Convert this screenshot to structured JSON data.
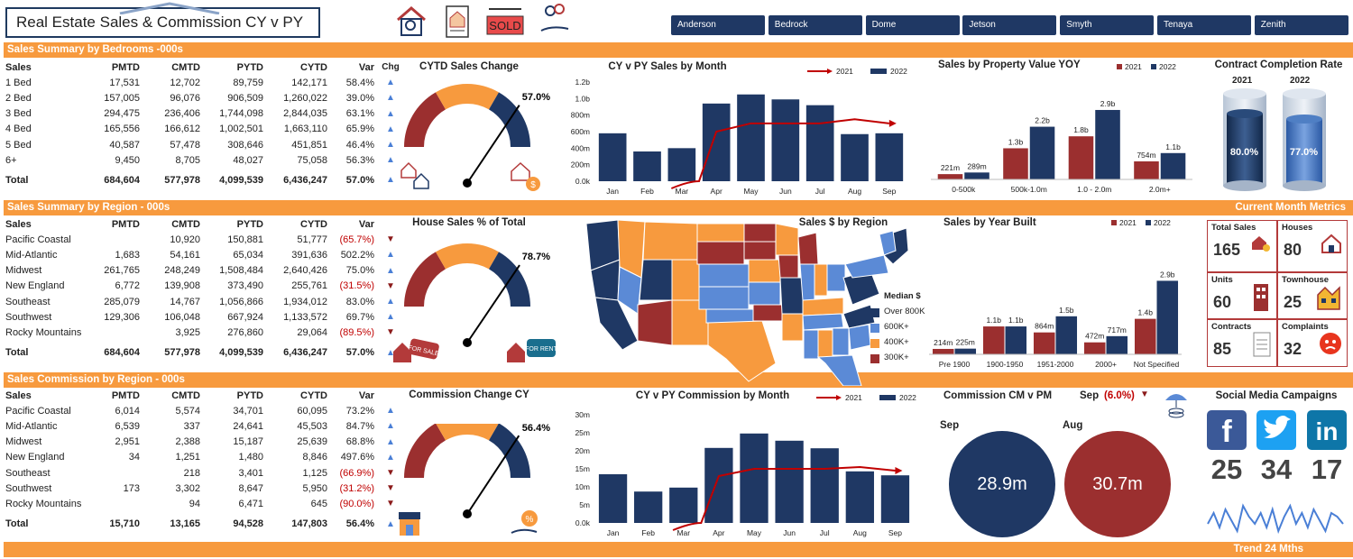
{
  "title": "Real Estate Sales & Commission  CY v PY",
  "filters": [
    "Anderson",
    "Bedrock",
    "Dome",
    "Jetson",
    "Smyth",
    "Tenaya",
    "Zenith"
  ],
  "bands": {
    "bedrooms": "Sales Summary by Bedrooms -000s",
    "region": "Sales Summary by Region - 000s",
    "commission": "Sales Commission by Region - 000s",
    "current_metrics": "Current Month Metrics",
    "trend": "Trend 24 Mths"
  },
  "headers": {
    "label": "Sales",
    "pmtd": "PMTD",
    "cmtd": "CMTD",
    "pytd": "PYTD",
    "cytd": "CYTD",
    "var": "Var",
    "chg": "Chg"
  },
  "bedrooms_table": {
    "rows": [
      {
        "label": "1 Bed",
        "pmtd": "17,531",
        "cmtd": "12,702",
        "pytd": "89,759",
        "cytd": "142,171",
        "var": "58.4%",
        "dir": "up"
      },
      {
        "label": "2 Bed",
        "pmtd": "157,005",
        "cmtd": "96,076",
        "pytd": "906,509",
        "cytd": "1,260,022",
        "var": "39.0%",
        "dir": "up"
      },
      {
        "label": "3 Bed",
        "pmtd": "294,475",
        "cmtd": "236,406",
        "pytd": "1,744,098",
        "cytd": "2,844,035",
        "var": "63.1%",
        "dir": "up"
      },
      {
        "label": "4 Bed",
        "pmtd": "165,556",
        "cmtd": "166,612",
        "pytd": "1,002,501",
        "cytd": "1,663,110",
        "var": "65.9%",
        "dir": "up"
      },
      {
        "label": "5 Bed",
        "pmtd": "40,587",
        "cmtd": "57,478",
        "pytd": "308,646",
        "cytd": "451,851",
        "var": "46.4%",
        "dir": "up"
      },
      {
        "label": "6+",
        "pmtd": "9,450",
        "cmtd": "8,705",
        "pytd": "48,027",
        "cytd": "75,058",
        "var": "56.3%",
        "dir": "up"
      }
    ],
    "total": {
      "label": "Total",
      "pmtd": "684,604",
      "cmtd": "577,978",
      "pytd": "4,099,539",
      "cytd": "6,436,247",
      "var": "57.0%",
      "dir": "up"
    }
  },
  "region_table": {
    "rows": [
      {
        "label": "Pacific Coastal",
        "pmtd": "",
        "cmtd": "10,920",
        "pytd": "150,881",
        "cytd": "51,777",
        "var": "(65.7%)",
        "dir": "down"
      },
      {
        "label": "Mid-Atlantic",
        "pmtd": "1,683",
        "cmtd": "54,161",
        "pytd": "65,034",
        "cytd": "391,636",
        "var": "502.2%",
        "dir": "up"
      },
      {
        "label": "Midwest",
        "pmtd": "261,765",
        "cmtd": "248,249",
        "pytd": "1,508,484",
        "cytd": "2,640,426",
        "var": "75.0%",
        "dir": "up"
      },
      {
        "label": "New England",
        "pmtd": "6,772",
        "cmtd": "139,908",
        "pytd": "373,490",
        "cytd": "255,761",
        "var": "(31.5%)",
        "dir": "down"
      },
      {
        "label": "Southeast",
        "pmtd": "285,079",
        "cmtd": "14,767",
        "pytd": "1,056,866",
        "cytd": "1,934,012",
        "var": "83.0%",
        "dir": "up"
      },
      {
        "label": "Southwest",
        "pmtd": "129,306",
        "cmtd": "106,048",
        "pytd": "667,924",
        "cytd": "1,133,572",
        "var": "69.7%",
        "dir": "up"
      },
      {
        "label": "Rocky Mountains",
        "pmtd": "",
        "cmtd": "3,925",
        "pytd": "276,860",
        "cytd": "29,064",
        "var": "(89.5%)",
        "dir": "down"
      }
    ],
    "total": {
      "label": "Total",
      "pmtd": "684,604",
      "cmtd": "577,978",
      "pytd": "4,099,539",
      "cytd": "6,436,247",
      "var": "57.0%",
      "dir": "up"
    }
  },
  "commission_table": {
    "rows": [
      {
        "label": "Pacific Coastal",
        "pmtd": "6,014",
        "cmtd": "5,574",
        "pytd": "34,701",
        "cytd": "60,095",
        "var": "73.2%",
        "dir": "up"
      },
      {
        "label": "Mid-Atlantic",
        "pmtd": "6,539",
        "cmtd": "337",
        "pytd": "24,641",
        "cytd": "45,503",
        "var": "84.7%",
        "dir": "up"
      },
      {
        "label": "Midwest",
        "pmtd": "2,951",
        "cmtd": "2,388",
        "pytd": "15,187",
        "cytd": "25,639",
        "var": "68.8%",
        "dir": "up"
      },
      {
        "label": "New England",
        "pmtd": "34",
        "cmtd": "1,251",
        "pytd": "1,480",
        "cytd": "8,846",
        "var": "497.6%",
        "dir": "up"
      },
      {
        "label": "Southeast",
        "pmtd": "",
        "cmtd": "218",
        "pytd": "3,401",
        "cytd": "1,125",
        "var": "(66.9%)",
        "dir": "down"
      },
      {
        "label": "Southwest",
        "pmtd": "173",
        "cmtd": "3,302",
        "pytd": "8,647",
        "cytd": "5,950",
        "var": "(31.2%)",
        "dir": "down"
      },
      {
        "label": "Rocky Mountains",
        "pmtd": "",
        "cmtd": "94",
        "pytd": "6,471",
        "cytd": "645",
        "var": "(90.0%)",
        "dir": "down"
      }
    ],
    "total": {
      "label": "Total",
      "pmtd": "15,710",
      "cmtd": "13,165",
      "pytd": "94,528",
      "cytd": "147,803",
      "var": "56.4%",
      "dir": "up"
    }
  },
  "gauges": [
    {
      "title": "CYTD Sales Change",
      "value_label": "57.0%",
      "fraction": 0.785
    },
    {
      "title": "House Sales % of Total",
      "value_label": "78.7%",
      "fraction": 0.787
    },
    {
      "title": "Commission Change CY",
      "value_label": "56.4%",
      "fraction": 0.782
    }
  ],
  "colors": {
    "orange": "#f79a3e",
    "navy": "#1f3864",
    "red": "#9b2f2f",
    "lightblue": "#5b8ad6",
    "blue_bar": "#1f3864"
  },
  "completion": {
    "title": "Contract Completion Rate",
    "years": [
      "2021",
      "2022"
    ],
    "values": [
      "80.0%",
      "77.0%"
    ]
  },
  "metrics": [
    {
      "label": "Total Sales",
      "value": "165",
      "icon": "house-key-icon"
    },
    {
      "label": "Houses",
      "value": "80",
      "icon": "house-icon"
    },
    {
      "label": "Units",
      "value": "60",
      "icon": "apartment-icon"
    },
    {
      "label": "Townhouse",
      "value": "25",
      "icon": "townhouse-icon"
    },
    {
      "label": "Contracts",
      "value": "85",
      "icon": "document-icon"
    },
    {
      "label": "Complaints",
      "value": "32",
      "icon": "angry-face-icon"
    }
  ],
  "commission_cm_pm": {
    "title": "Commission CM v PM",
    "month": "Sep",
    "change": "(6.0%)",
    "cm_label": "Sep",
    "pm_label": "Aug",
    "cm_value": "28.9m",
    "pm_value": "30.7m"
  },
  "social": {
    "title": "Social Media Campaigns",
    "counts": [
      "25",
      "34",
      "17"
    ],
    "trend": [
      6,
      9,
      5,
      10,
      7,
      4,
      11,
      8,
      6,
      9,
      5,
      10,
      4,
      8,
      11,
      6,
      9,
      5,
      10,
      7,
      4,
      9,
      8,
      6
    ]
  },
  "map": {
    "title": "Sales $ by Region",
    "legend_title": "Median $",
    "legend": [
      {
        "label": "Over 800K",
        "color": "#1f3864"
      },
      {
        "label": "600K+",
        "color": "#5b8ad6"
      },
      {
        "label": "400K+",
        "color": "#f79a3e"
      },
      {
        "label": "300K+",
        "color": "#9b2f2f"
      }
    ]
  },
  "chart_data": [
    {
      "type": "bar",
      "title": "CY v PY Sales by Month",
      "categories": [
        "Jan",
        "Feb",
        "Mar",
        "Apr",
        "May",
        "Jun",
        "Jul",
        "Aug",
        "Sep"
      ],
      "series": [
        {
          "name": "2022",
          "values": [
            580,
            360,
            400,
            940,
            1050,
            990,
            920,
            570,
            580
          ]
        },
        {
          "name": "2021",
          "values": [
            null,
            null,
            0,
            600,
            700,
            700,
            700,
            750,
            700
          ]
        }
      ],
      "yticks": [
        "0.0k",
        "200m",
        "400m",
        "600m",
        "800m",
        "1.0b",
        "1.2b"
      ],
      "ylim": [
        0,
        1200
      ],
      "legend": "top-right"
    },
    {
      "type": "bar",
      "title": "Sales by Property Value YOY",
      "categories": [
        "0-500k",
        "500k-1.0m",
        "1.0 - 2.0m",
        "2.0m+"
      ],
      "series": [
        {
          "name": "2021",
          "values": [
            221,
            1300,
            1800,
            754
          ]
        },
        {
          "name": "2022",
          "values": [
            289,
            2200,
            2900,
            1100
          ]
        }
      ],
      "labels": {
        "2021": [
          "221m",
          "1.3b",
          "1.8b",
          "754m"
        ],
        "2022": [
          "289m",
          "2.2b",
          "2.9b",
          "1.1b"
        ]
      },
      "ylim": [
        0,
        3200
      ],
      "legend": "top-right"
    },
    {
      "type": "bar",
      "title": "Sales by Year Built",
      "categories": [
        "Pre 1900",
        "1900-1950",
        "1951-2000",
        "2000+",
        "Not Specified"
      ],
      "series": [
        {
          "name": "2021",
          "values": [
            214,
            1100,
            864,
            472,
            1400
          ]
        },
        {
          "name": "2022",
          "values": [
            225,
            1100,
            1500,
            717,
            2900
          ]
        }
      ],
      "labels": {
        "2021": [
          "214m",
          "1.1b",
          "864m",
          "472m",
          "1.4b"
        ],
        "2022": [
          "225m",
          "1.1b",
          "1.5b",
          "717m",
          "2.9b"
        ]
      },
      "ylim": [
        0,
        3200
      ],
      "legend": "top-right"
    },
    {
      "type": "bar",
      "title": "CY v PY Commission by Month",
      "categories": [
        "Jan",
        "Feb",
        "Mar",
        "Apr",
        "May",
        "Jun",
        "Jul",
        "Aug",
        "Sep"
      ],
      "series": [
        {
          "name": "2022",
          "values": [
            13.5,
            8.7,
            9.8,
            20.8,
            24.8,
            22.8,
            20.7,
            14.3,
            13.2
          ]
        },
        {
          "name": "2021",
          "values": [
            null,
            null,
            0,
            13,
            15,
            15,
            15,
            15.5,
            14.5
          ]
        }
      ],
      "yticks": [
        "0.0k",
        "5m",
        "10m",
        "15m",
        "20m",
        "25m",
        "30m"
      ],
      "ylim": [
        0,
        30
      ],
      "legend": "top-right"
    }
  ]
}
